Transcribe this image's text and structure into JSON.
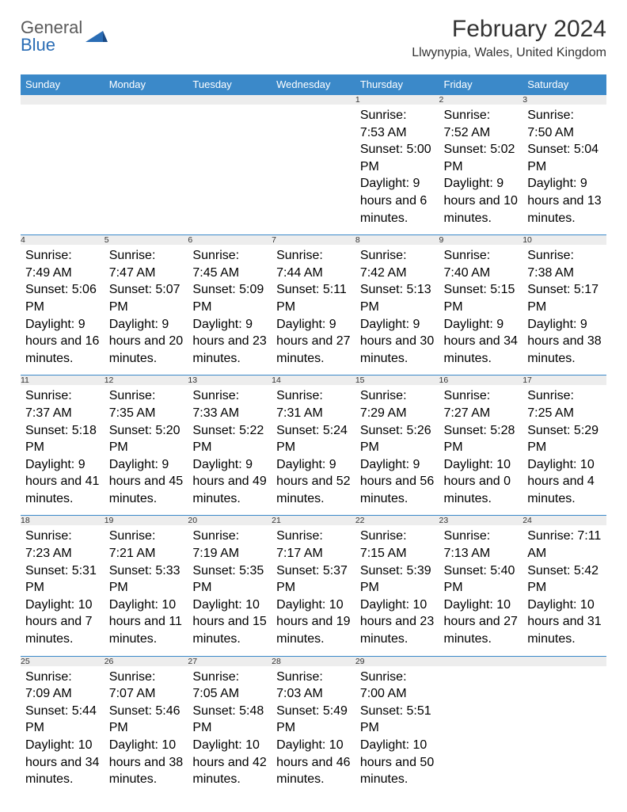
{
  "logo": {
    "line1": "General",
    "line2": "Blue"
  },
  "title": "February 2024",
  "location": "Llwynypia, Wales, United Kingdom",
  "colors": {
    "header_bg": "#3b89c9",
    "header_text": "#ffffff",
    "daynum_bg": "#ededed",
    "row_border": "#3b89c9",
    "text": "#333333",
    "logo_gray": "#5a5a5a",
    "logo_blue": "#2a6db5",
    "page_bg": "#ffffff"
  },
  "dayHeaders": [
    "Sunday",
    "Monday",
    "Tuesday",
    "Wednesday",
    "Thursday",
    "Friday",
    "Saturday"
  ],
  "weeks": [
    [
      null,
      null,
      null,
      null,
      {
        "n": "1",
        "sr": "7:53 AM",
        "ss": "5:00 PM",
        "dl": "9 hours and 6 minutes."
      },
      {
        "n": "2",
        "sr": "7:52 AM",
        "ss": "5:02 PM",
        "dl": "9 hours and 10 minutes."
      },
      {
        "n": "3",
        "sr": "7:50 AM",
        "ss": "5:04 PM",
        "dl": "9 hours and 13 minutes."
      }
    ],
    [
      {
        "n": "4",
        "sr": "7:49 AM",
        "ss": "5:06 PM",
        "dl": "9 hours and 16 minutes."
      },
      {
        "n": "5",
        "sr": "7:47 AM",
        "ss": "5:07 PM",
        "dl": "9 hours and 20 minutes."
      },
      {
        "n": "6",
        "sr": "7:45 AM",
        "ss": "5:09 PM",
        "dl": "9 hours and 23 minutes."
      },
      {
        "n": "7",
        "sr": "7:44 AM",
        "ss": "5:11 PM",
        "dl": "9 hours and 27 minutes."
      },
      {
        "n": "8",
        "sr": "7:42 AM",
        "ss": "5:13 PM",
        "dl": "9 hours and 30 minutes."
      },
      {
        "n": "9",
        "sr": "7:40 AM",
        "ss": "5:15 PM",
        "dl": "9 hours and 34 minutes."
      },
      {
        "n": "10",
        "sr": "7:38 AM",
        "ss": "5:17 PM",
        "dl": "9 hours and 38 minutes."
      }
    ],
    [
      {
        "n": "11",
        "sr": "7:37 AM",
        "ss": "5:18 PM",
        "dl": "9 hours and 41 minutes."
      },
      {
        "n": "12",
        "sr": "7:35 AM",
        "ss": "5:20 PM",
        "dl": "9 hours and 45 minutes."
      },
      {
        "n": "13",
        "sr": "7:33 AM",
        "ss": "5:22 PM",
        "dl": "9 hours and 49 minutes."
      },
      {
        "n": "14",
        "sr": "7:31 AM",
        "ss": "5:24 PM",
        "dl": "9 hours and 52 minutes."
      },
      {
        "n": "15",
        "sr": "7:29 AM",
        "ss": "5:26 PM",
        "dl": "9 hours and 56 minutes."
      },
      {
        "n": "16",
        "sr": "7:27 AM",
        "ss": "5:28 PM",
        "dl": "10 hours and 0 minutes."
      },
      {
        "n": "17",
        "sr": "7:25 AM",
        "ss": "5:29 PM",
        "dl": "10 hours and 4 minutes."
      }
    ],
    [
      {
        "n": "18",
        "sr": "7:23 AM",
        "ss": "5:31 PM",
        "dl": "10 hours and 7 minutes."
      },
      {
        "n": "19",
        "sr": "7:21 AM",
        "ss": "5:33 PM",
        "dl": "10 hours and 11 minutes."
      },
      {
        "n": "20",
        "sr": "7:19 AM",
        "ss": "5:35 PM",
        "dl": "10 hours and 15 minutes."
      },
      {
        "n": "21",
        "sr": "7:17 AM",
        "ss": "5:37 PM",
        "dl": "10 hours and 19 minutes."
      },
      {
        "n": "22",
        "sr": "7:15 AM",
        "ss": "5:39 PM",
        "dl": "10 hours and 23 minutes."
      },
      {
        "n": "23",
        "sr": "7:13 AM",
        "ss": "5:40 PM",
        "dl": "10 hours and 27 minutes."
      },
      {
        "n": "24",
        "sr": "7:11 AM",
        "ss": "5:42 PM",
        "dl": "10 hours and 31 minutes."
      }
    ],
    [
      {
        "n": "25",
        "sr": "7:09 AM",
        "ss": "5:44 PM",
        "dl": "10 hours and 34 minutes."
      },
      {
        "n": "26",
        "sr": "7:07 AM",
        "ss": "5:46 PM",
        "dl": "10 hours and 38 minutes."
      },
      {
        "n": "27",
        "sr": "7:05 AM",
        "ss": "5:48 PM",
        "dl": "10 hours and 42 minutes."
      },
      {
        "n": "28",
        "sr": "7:03 AM",
        "ss": "5:49 PM",
        "dl": "10 hours and 46 minutes."
      },
      {
        "n": "29",
        "sr": "7:00 AM",
        "ss": "5:51 PM",
        "dl": "10 hours and 50 minutes."
      },
      null,
      null
    ]
  ],
  "labels": {
    "sunrise": "Sunrise: ",
    "sunset": "Sunset: ",
    "daylight": "Daylight: "
  }
}
